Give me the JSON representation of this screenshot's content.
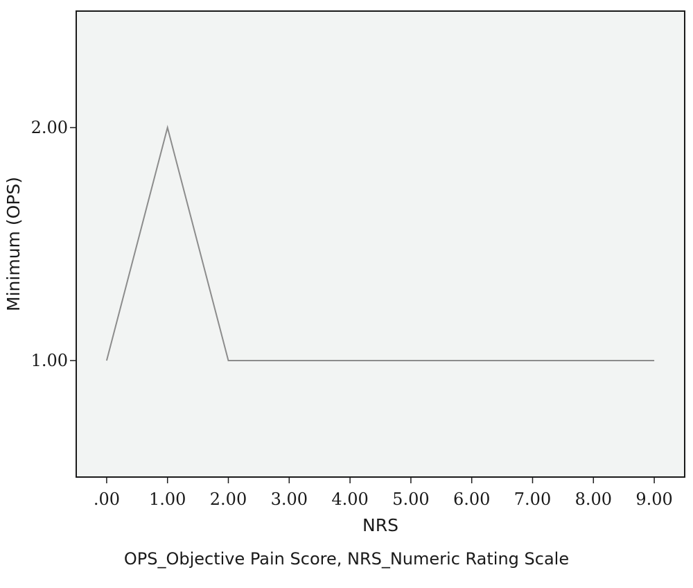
{
  "chart_data": {
    "type": "line",
    "x": [
      0,
      1,
      2,
      3,
      4,
      5,
      6,
      7,
      8,
      9
    ],
    "series": [
      {
        "values": [
          1,
          2,
          1,
          1,
          1,
          1,
          1,
          1,
          1,
          1
        ]
      }
    ],
    "xlabel": "NRS",
    "ylabel": "Minimum (OPS)",
    "xlim": [
      -0.5,
      9.5
    ],
    "ylim": [
      0.5,
      2.5
    ],
    "x_ticks": [
      ".00",
      "1.00",
      "2.00",
      "3.00",
      "4.00",
      "5.00",
      "6.00",
      "7.00",
      "8.00",
      "9.00"
    ],
    "y_ticks": [
      {
        "value": 1,
        "label": "1.00"
      },
      {
        "value": 2,
        "label": "2.00"
      }
    ],
    "grid": false,
    "plot_background": "#f2f4f3",
    "line_color": "#8c8c8c",
    "axis_color": "#1a1a1a"
  },
  "caption": "OPS_Objective Pain Score, NRS_Numeric Rating Scale"
}
